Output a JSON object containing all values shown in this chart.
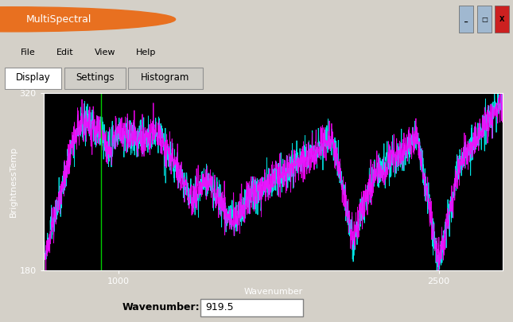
{
  "title_bar": "MultiSpectral",
  "tabs": [
    "Display",
    "Settings",
    "Histogram"
  ],
  "active_tab": 0,
  "menu_items": [
    "File",
    "Edit",
    "View",
    "Help"
  ],
  "ylabel": "BrightnessTemp",
  "xlabel": "Wavenumber",
  "ylim": [
    180,
    320
  ],
  "yticks": [
    180,
    320
  ],
  "xticks": [
    1000,
    2500
  ],
  "wavenumber_label": "Wavenumber:",
  "wavenumber_value": "919.5",
  "plot_bg": "#000000",
  "window_bg": "#d4d0c8",
  "plot_frame_color": "#ffffff",
  "cyan_color": "#00ffff",
  "magenta_color": "#ff00ff",
  "green_line_x": 919.5,
  "x_range": [
    650,
    2800
  ],
  "title_bar_color": "#4a7fbd",
  "axis_text_color": "#ffffff",
  "xlabel_color": "#ffffff",
  "ylabel_color": "#ffffff"
}
